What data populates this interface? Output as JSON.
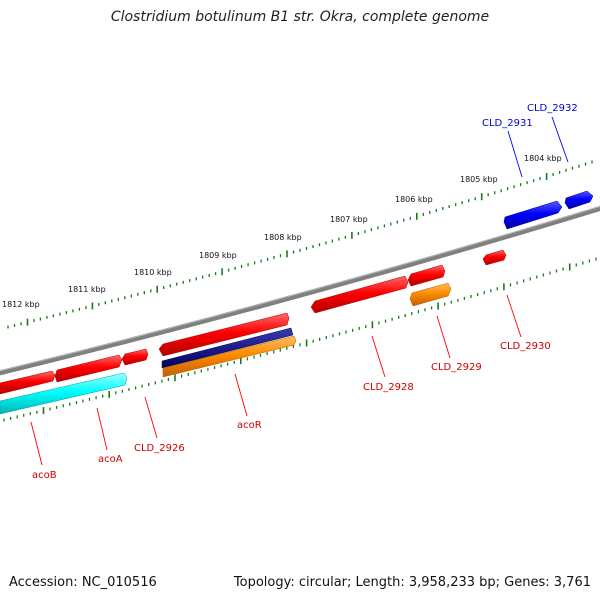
{
  "title": "Clostridium botulinum B1 str. Okra, complete genome",
  "footer": {
    "accession": "Accession: NC_010516",
    "summary": "Topology: circular; Length: 3,958,233 bp; Genes: 3,761"
  },
  "colors": {
    "backbone": "#808080",
    "ruler_ticks": "#1a7a1a",
    "reverse_gene": "#ff0000",
    "forward_gene": "#0000ff",
    "cyan_feature": "#00ffff",
    "navy_feature": "#000080",
    "orange_feature": "#ff8c00"
  },
  "ruler_labels": [
    "1812 kbp",
    "1811 kbp",
    "1810 kbp",
    "1809 kbp",
    "1808 kbp",
    "1807 kbp",
    "1806 kbp",
    "1805 kbp",
    "1804 kbp"
  ],
  "gene_labels": {
    "reverse": [
      "acoB",
      "acoA",
      "CLD_2926",
      "acoR",
      "CLD_2928",
      "CLD_2929",
      "CLD_2930"
    ],
    "forward": [
      "CLD_2931",
      "CLD_2932"
    ]
  }
}
